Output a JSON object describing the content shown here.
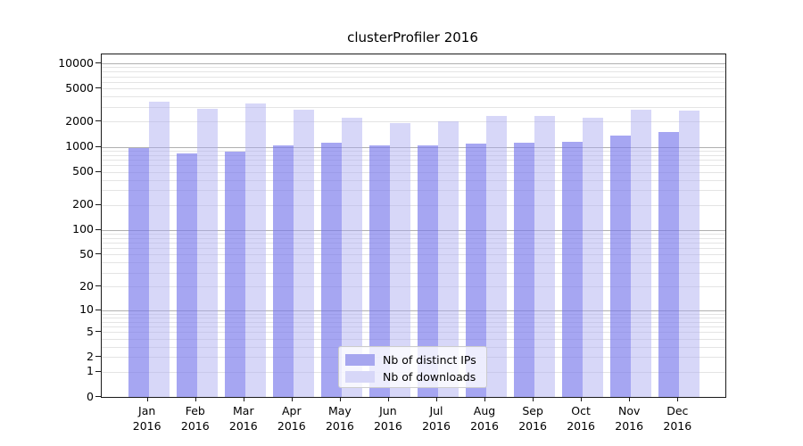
{
  "figure": {
    "title": "clusterProfiler 2016"
  },
  "chart_data": {
    "type": "bar",
    "title": "clusterProfiler 2016",
    "x": {
      "categories": [
        "Jan",
        "Feb",
        "Mar",
        "Apr",
        "May",
        "Jun",
        "Jul",
        "Aug",
        "Sep",
        "Oct",
        "Nov",
        "Dec"
      ],
      "year": "2016"
    },
    "series": [
      {
        "name": "Nb of distinct IPs",
        "color": "#a6a6ef",
        "values": [
          960,
          840,
          880,
          1040,
          1120,
          1040,
          1040,
          1080,
          1120,
          1150,
          1360,
          1500
        ]
      },
      {
        "name": "Nb of downloads",
        "color": "#d7d7f8",
        "values": [
          3440,
          2870,
          3300,
          2800,
          2240,
          1900,
          2000,
          2340,
          2320,
          2250,
          2780,
          2730
        ]
      }
    ],
    "y_axis": {
      "scale": "log10(value+1)",
      "ticks": [
        10000,
        5000,
        2000,
        1000,
        500,
        200,
        100,
        50,
        20,
        10,
        5,
        2,
        1,
        0
      ],
      "range": [
        0,
        12800
      ],
      "major_gridlines_at": [
        10,
        100,
        1000,
        10000
      ]
    },
    "grid": {
      "enabled": true,
      "minor_color": "#e4e4e4",
      "major_color": "#b0b0b0"
    },
    "legend": {
      "position": "lower center"
    }
  }
}
